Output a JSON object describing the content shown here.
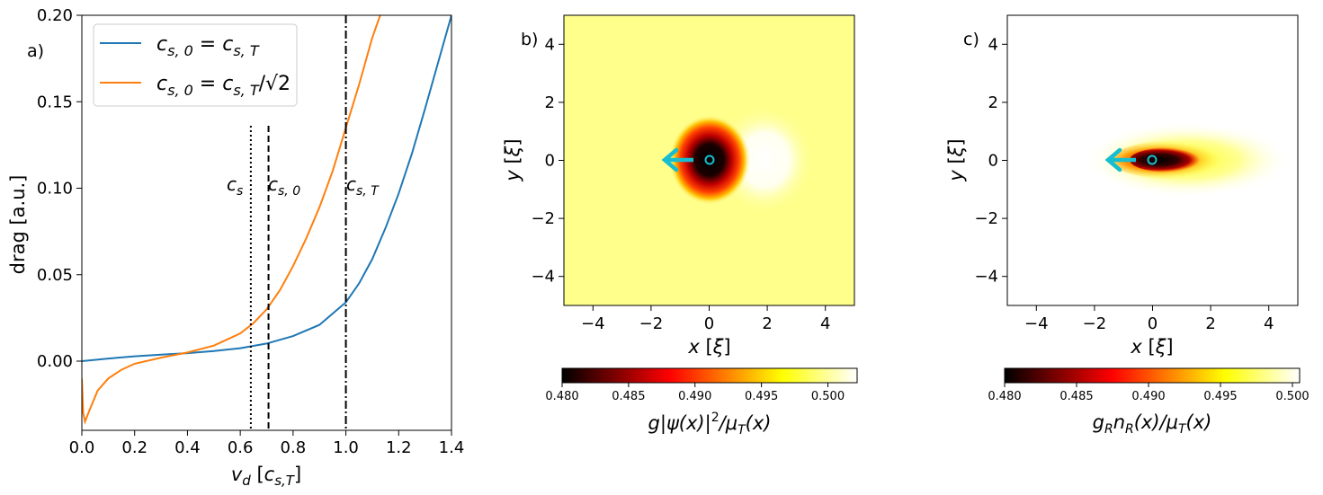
{
  "chart_data": [
    {
      "panel_label": "a)",
      "type": "line",
      "xlabel": "v_d [c_s,T]",
      "ylabel": "drag [a.u.]",
      "xlim": [
        0,
        1.4
      ],
      "ylim": [
        -0.04,
        0.2
      ],
      "xticks": [
        0,
        0.2,
        0.4,
        0.6,
        0.8,
        1.0,
        1.2,
        1.4
      ],
      "xtick_labels": [
        "0.0",
        "0.2",
        "0.4",
        "0.6",
        "0.8",
        "1.0",
        "1.2",
        "1.4"
      ],
      "yticks": [
        0,
        0.05,
        0.1,
        0.15,
        0.2
      ],
      "ytick_labels": [
        "0.00",
        "0.05",
        "0.10",
        "0.15",
        "0.20"
      ],
      "legend_position": "top-left",
      "series": [
        {
          "name": "c_s,0 = c_s,T",
          "color": "#1f77b4",
          "x": [
            0.0,
            0.1,
            0.2,
            0.3,
            0.4,
            0.5,
            0.6,
            0.7,
            0.8,
            0.9,
            1.0,
            1.05,
            1.1,
            1.15,
            1.2,
            1.25,
            1.3,
            1.35,
            1.4
          ],
          "y": [
            0.0,
            0.0015,
            0.0028,
            0.0038,
            0.0046,
            0.0058,
            0.0075,
            0.0102,
            0.0145,
            0.021,
            0.034,
            0.045,
            0.059,
            0.077,
            0.097,
            0.12,
            0.146,
            0.173,
            0.2
          ]
        },
        {
          "name": "c_s,0 = c_s,T/√2",
          "color": "#ff7f0e",
          "x": [
            0.0,
            0.005,
            0.012,
            0.03,
            0.06,
            0.1,
            0.15,
            0.2,
            0.3,
            0.4,
            0.5,
            0.6,
            0.65,
            0.7,
            0.75,
            0.8,
            0.85,
            0.9,
            0.95,
            1.0,
            1.05,
            1.1,
            1.13
          ],
          "y": [
            -0.01,
            -0.03,
            -0.035,
            -0.028,
            -0.017,
            -0.01,
            -0.005,
            -0.0015,
            0.002,
            0.005,
            0.009,
            0.016,
            0.022,
            0.03,
            0.041,
            0.055,
            0.071,
            0.089,
            0.11,
            0.135,
            0.16,
            0.187,
            0.2
          ]
        }
      ],
      "vlines": [
        {
          "x": 0.64,
          "style": "dotted",
          "label": "c_s"
        },
        {
          "x": 0.707,
          "style": "dashed",
          "label": "c_s,0"
        },
        {
          "x": 1.0,
          "style": "dashdot",
          "label": "c_s,T"
        }
      ]
    },
    {
      "panel_label": "b)",
      "type": "heatmap",
      "xlabel": "x [ξ]",
      "ylabel": "y [ξ]",
      "xlim": [
        -5,
        5
      ],
      "ylim": [
        -5,
        5
      ],
      "xticks": [
        -4,
        -2,
        0,
        2,
        4
      ],
      "xtick_labels": [
        "−4",
        "−2",
        "0",
        "2",
        "4"
      ],
      "yticks": [
        -4,
        -2,
        0,
        2,
        4
      ],
      "ytick_labels": [
        "−4",
        "−2",
        "0",
        "2",
        "4"
      ],
      "colormap": "hot",
      "colorbar": {
        "label": "g|ψ(x)|²/μ_T(x)",
        "range": [
          0.48,
          0.5022
        ],
        "ticks": [
          0.48,
          0.485,
          0.49,
          0.495,
          0.5
        ],
        "tick_labels": [
          "0.480",
          "0.485",
          "0.490",
          "0.495",
          "0.500"
        ]
      },
      "background_value": 0.4985,
      "features": [
        {
          "kind": "dip",
          "center": [
            0,
            0
          ],
          "radius": 1.0,
          "min_value": 0.48
        },
        {
          "kind": "bump",
          "center": [
            1.9,
            0
          ],
          "radius": 1.2,
          "max_value": 0.5022
        }
      ],
      "obstacle": {
        "x": 0,
        "y": 0,
        "marker": "circle",
        "color": "#17becf"
      },
      "arrow": {
        "from": [
          -0.55,
          0
        ],
        "to": [
          -1.65,
          0
        ],
        "color": "#17becf"
      }
    },
    {
      "panel_label": "c)",
      "type": "heatmap",
      "xlabel": "x [ξ]",
      "ylabel": "y [ξ]",
      "xlim": [
        -5,
        5
      ],
      "ylim": [
        -5,
        5
      ],
      "xticks": [
        -4,
        -2,
        0,
        2,
        4
      ],
      "xtick_labels": [
        "−4",
        "−2",
        "0",
        "2",
        "4"
      ],
      "yticks": [
        -4,
        -2,
        0,
        2,
        4
      ],
      "ytick_labels": [
        "−4",
        "−2",
        "0",
        "2",
        "4"
      ],
      "colormap": "hot",
      "colorbar": {
        "label": "g_R n_R(x)/μ_T(x)",
        "range": [
          0.48,
          0.5005
        ],
        "ticks": [
          0.48,
          0.485,
          0.49,
          0.495,
          0.5
        ],
        "tick_labels": [
          "0.480",
          "0.485",
          "0.490",
          "0.495",
          "0.500"
        ]
      },
      "background_value": 0.5005,
      "features": [
        {
          "kind": "wake",
          "center": [
            0.3,
            0
          ],
          "length": 3.5,
          "width": 0.9,
          "min_value": 0.48
        }
      ],
      "obstacle": {
        "x": 0,
        "y": 0,
        "marker": "circle",
        "color": "#17becf"
      },
      "arrow": {
        "from": [
          -0.55,
          0
        ],
        "to": [
          -1.65,
          0
        ],
        "color": "#17becf"
      }
    }
  ]
}
